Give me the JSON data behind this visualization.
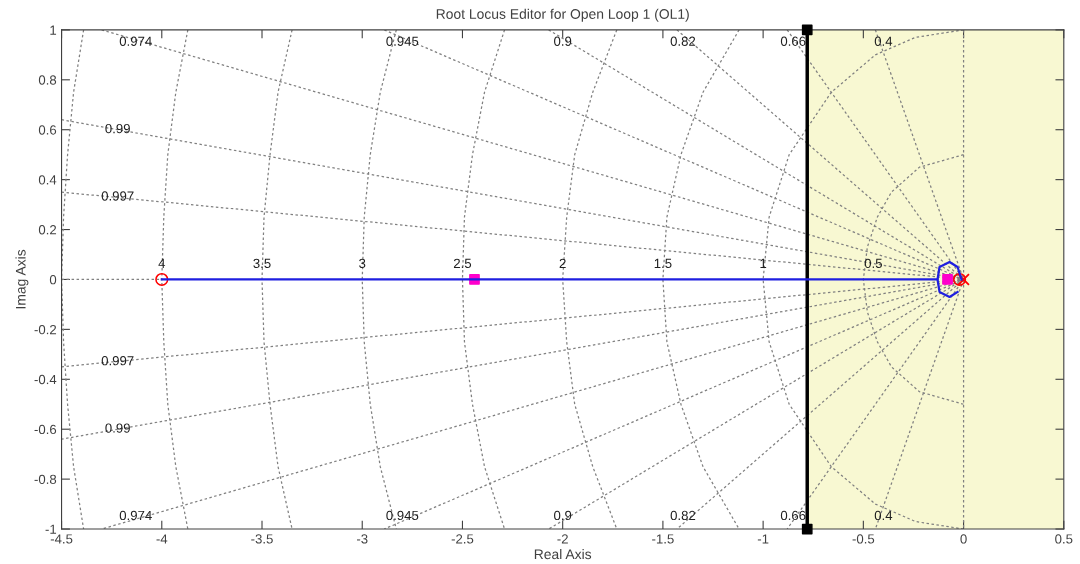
{
  "chart_data": {
    "type": "line",
    "title": "Root Locus Editor for Open Loop 1 (OL1)",
    "xlabel": "Real Axis",
    "ylabel": "Imag Axis",
    "xlim": [
      -4.5,
      0.5
    ],
    "ylim": [
      -1,
      1
    ],
    "xticks": [
      -4.5,
      -4,
      -3.5,
      -3,
      -2.5,
      -2,
      -1.5,
      -1,
      -0.5,
      0,
      0.5
    ],
    "yticks": [
      -1,
      -0.8,
      -0.6,
      -0.4,
      -0.2,
      0,
      0.2,
      0.4,
      0.6,
      0.8,
      1
    ],
    "grid": false,
    "legend": false,
    "bands": [
      {
        "axis": "x",
        "from": -0.78,
        "to": 0.5,
        "color": "#f8f8d2"
      }
    ],
    "ref_lines": [
      {
        "axis": "x",
        "value": -0.78,
        "color": "#000000",
        "line_style": "solid"
      }
    ],
    "series": [
      {
        "color": "#808080",
        "line_style": "dotted",
        "x": [
          -4.39,
          -4.44,
          -4.47,
          -4.49,
          -4.5,
          -4.49,
          -4.47,
          -4.44,
          -4.39
        ],
        "values": [
          1,
          0.75,
          0.5,
          0.25,
          0,
          -0.25,
          -0.5,
          -0.75,
          -1
        ]
      },
      {
        "color": "#808080",
        "line_style": "dotted",
        "x": [
          -3.87,
          -3.93,
          -3.97,
          -3.99,
          -4,
          -3.99,
          -3.97,
          -3.93,
          -3.87
        ],
        "values": [
          1,
          0.75,
          0.5,
          0.25,
          0,
          -0.25,
          -0.5,
          -0.75,
          -1
        ]
      },
      {
        "color": "#808080",
        "line_style": "dotted",
        "x": [
          -3.35,
          -3.42,
          -3.46,
          -3.49,
          -3.5,
          -3.49,
          -3.46,
          -3.42,
          -3.35
        ],
        "values": [
          1,
          0.75,
          0.5,
          0.25,
          0,
          -0.25,
          -0.5,
          -0.75,
          -1
        ]
      },
      {
        "color": "#808080",
        "line_style": "dotted",
        "x": [
          -2.83,
          -2.91,
          -2.96,
          -2.99,
          -3,
          -2.99,
          -2.96,
          -2.91,
          -2.83
        ],
        "values": [
          1,
          0.75,
          0.5,
          0.25,
          0,
          -0.25,
          -0.5,
          -0.75,
          -1
        ]
      },
      {
        "color": "#808080",
        "line_style": "dotted",
        "x": [
          -2.29,
          -2.39,
          -2.45,
          -2.49,
          -2.5,
          -2.49,
          -2.45,
          -2.39,
          -2.29
        ],
        "values": [
          1,
          0.75,
          0.5,
          0.25,
          0,
          -0.25,
          -0.5,
          -0.75,
          -1
        ]
      },
      {
        "color": "#808080",
        "line_style": "dotted",
        "x": [
          -1.73,
          -1.85,
          -1.94,
          -1.98,
          -2,
          -1.98,
          -1.94,
          -1.85,
          -1.73
        ],
        "values": [
          1,
          0.75,
          0.5,
          0.25,
          0,
          -0.25,
          -0.5,
          -0.75,
          -1
        ]
      },
      {
        "color": "#808080",
        "line_style": "dotted",
        "x": [
          -1.12,
          -1.3,
          -1.41,
          -1.48,
          -1.5,
          -1.48,
          -1.41,
          -1.3,
          -1.12
        ],
        "values": [
          1,
          0.75,
          0.5,
          0.25,
          0,
          -0.25,
          -0.5,
          -0.75,
          -1
        ]
      },
      {
        "color": "#808080",
        "line_style": "dotted",
        "x": [
          0,
          -0.24,
          -0.44,
          -0.66,
          -0.87,
          -0.97,
          -1,
          -0.97,
          -0.87,
          -0.66,
          -0.44,
          -0.24,
          0
        ],
        "values": [
          1,
          0.97,
          0.9,
          0.75,
          0.5,
          0.25,
          0,
          -0.25,
          -0.5,
          -0.75,
          -0.9,
          -0.97,
          -1
        ]
      },
      {
        "color": "#808080",
        "line_style": "dotted",
        "x": [
          0,
          -0.22,
          -0.36,
          -0.43,
          -0.48,
          -0.5,
          -0.48,
          -0.43,
          -0.36,
          -0.22,
          0
        ],
        "values": [
          0.5,
          0.45,
          0.35,
          0.25,
          0.13,
          0,
          -0.13,
          -0.25,
          -0.35,
          -0.45,
          -0.5
        ]
      },
      {
        "color": "#808080",
        "line_style": "dotted",
        "x": [
          -4.5,
          -4
        ],
        "values": [
          0,
          0
        ]
      },
      {
        "color": "#808080",
        "line_style": "dotted",
        "x": [
          -4.5,
          0,
          -4.5
        ],
        "values": [
          0.35,
          0,
          -0.35
        ]
      },
      {
        "color": "#808080",
        "line_style": "dotted",
        "x": [
          -4.5,
          0,
          -4.5
        ],
        "values": [
          0.64,
          0,
          -0.64
        ]
      },
      {
        "color": "#808080",
        "line_style": "dotted",
        "x": [
          -4.3,
          0,
          -4.3
        ],
        "values": [
          1,
          0,
          -1
        ]
      },
      {
        "color": "#808080",
        "line_style": "dotted",
        "x": [
          -2.89,
          0,
          -2.89
        ],
        "values": [
          1,
          0,
          -1
        ]
      },
      {
        "color": "#808080",
        "line_style": "dotted",
        "x": [
          -2.07,
          0,
          -2.07
        ],
        "values": [
          1,
          0,
          -1
        ]
      },
      {
        "color": "#808080",
        "line_style": "dotted",
        "x": [
          -1.43,
          0,
          -1.43
        ],
        "values": [
          1,
          0,
          -1
        ]
      },
      {
        "color": "#808080",
        "line_style": "dotted",
        "x": [
          -0.88,
          0,
          -0.88
        ],
        "values": [
          1,
          0,
          -1
        ]
      },
      {
        "color": "#808080",
        "line_style": "dotted",
        "x": [
          -0.44,
          0,
          -0.44
        ],
        "values": [
          1,
          0,
          -1
        ]
      },
      {
        "color": "#808080",
        "line_style": "dotted",
        "x": [
          0,
          0
        ],
        "values": [
          1,
          -1
        ]
      },
      {
        "color": "#1f1fe0",
        "line_style": "solid",
        "x": [
          -4,
          -0.13
        ],
        "values": [
          0,
          0
        ]
      },
      {
        "color": "#1f1fe0",
        "line_style": "solid",
        "x": [
          -0.01,
          -0.03,
          -0.07,
          -0.12,
          -0.13,
          -0.12,
          -0.07,
          -0.03
        ],
        "values": [
          0,
          0.05,
          0.07,
          0.05,
          0,
          -0.05,
          -0.07,
          -0.05
        ]
      },
      {
        "type": "scatter",
        "color": "#000000",
        "marker": "square",
        "x": [
          -0.78,
          -0.78
        ],
        "values": [
          1,
          -1
        ]
      },
      {
        "type": "scatter",
        "color": "#ff0000",
        "marker": "circle",
        "x": [
          -4,
          -0.02
        ],
        "values": [
          0,
          0
        ]
      },
      {
        "type": "scatter",
        "color": "#ff0000",
        "marker": "cross",
        "x": [
          0
        ],
        "values": [
          0
        ]
      },
      {
        "type": "scatter",
        "color": "#ff00cc",
        "marker": "square",
        "x": [
          -2.44,
          -0.08
        ],
        "values": [
          0,
          0
        ]
      }
    ],
    "annotations": [
      {
        "text": "0.974",
        "x": -4.13,
        "y": 0.95
      },
      {
        "text": "0.945",
        "x": -2.8,
        "y": 0.95
      },
      {
        "text": "0.9",
        "x": -2.0,
        "y": 0.95
      },
      {
        "text": "0.82",
        "x": -1.4,
        "y": 0.95
      },
      {
        "text": "0.66",
        "x": -0.85,
        "y": 0.95
      },
      {
        "text": "0.4",
        "x": -0.4,
        "y": 0.95
      },
      {
        "text": "0.99",
        "x": -4.22,
        "y": 0.6
      },
      {
        "text": "0.997",
        "x": -4.22,
        "y": 0.33
      },
      {
        "text": "0.997",
        "x": -4.22,
        "y": -0.33
      },
      {
        "text": "0.99",
        "x": -4.22,
        "y": -0.6
      },
      {
        "text": "0.974",
        "x": -4.13,
        "y": -0.95
      },
      {
        "text": "0.945",
        "x": -2.8,
        "y": -0.95
      },
      {
        "text": "0.9",
        "x": -2.0,
        "y": -0.95
      },
      {
        "text": "0.82",
        "x": -1.4,
        "y": -0.95
      },
      {
        "text": "0.66",
        "x": -0.85,
        "y": -0.95
      },
      {
        "text": "0.4",
        "x": -0.4,
        "y": -0.95
      },
      {
        "text": "4",
        "x": -4.0,
        "y": 0.06
      },
      {
        "text": "3.5",
        "x": -3.5,
        "y": 0.06
      },
      {
        "text": "3",
        "x": -3.0,
        "y": 0.06
      },
      {
        "text": "2.5",
        "x": -2.5,
        "y": 0.06
      },
      {
        "text": "2",
        "x": -2.0,
        "y": 0.06
      },
      {
        "text": "1.5",
        "x": -1.5,
        "y": 0.06
      },
      {
        "text": "1",
        "x": -1.0,
        "y": 0.06
      },
      {
        "text": "0.5",
        "x": -0.45,
        "y": 0.06
      }
    ]
  }
}
